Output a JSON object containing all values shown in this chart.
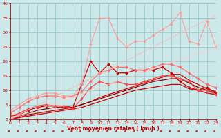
{
  "xlabel": "Vent moyen/en rafales ( km/h )",
  "xlim": [
    0,
    23
  ],
  "ylim": [
    0,
    40
  ],
  "yticks": [
    0,
    5,
    10,
    15,
    20,
    25,
    30,
    35,
    40
  ],
  "xticks": [
    0,
    1,
    2,
    3,
    4,
    5,
    6,
    7,
    8,
    9,
    10,
    11,
    12,
    13,
    14,
    15,
    16,
    17,
    18,
    19,
    20,
    21,
    22,
    23
  ],
  "bg_color": "#cce8e8",
  "grid_color": "#99cccc",
  "lines": [
    {
      "x": [
        0,
        1,
        2,
        3,
        4,
        5,
        6,
        7,
        8,
        9,
        10,
        11,
        12,
        13,
        14,
        15,
        16,
        17,
        18,
        19,
        20,
        21,
        22,
        23
      ],
      "y": [
        0,
        0.5,
        1,
        1.5,
        2,
        2.5,
        3,
        3.5,
        4,
        5,
        6,
        7,
        8,
        9,
        10,
        10.5,
        11,
        11.5,
        12,
        12,
        10.5,
        10,
        9,
        8.5
      ],
      "color": "#cc0000",
      "lw": 0.9,
      "marker": null,
      "ms": 0,
      "alpha": 1.0
    },
    {
      "x": [
        0,
        1,
        2,
        3,
        4,
        5,
        6,
        7,
        8,
        9,
        10,
        11,
        12,
        13,
        14,
        15,
        16,
        17,
        18,
        19,
        20,
        21,
        22,
        23
      ],
      "y": [
        0,
        0.5,
        1.5,
        2,
        2.5,
        3,
        3.5,
        4,
        5,
        6,
        7.5,
        8.5,
        9.5,
        10.5,
        11.5,
        12.5,
        13.5,
        14.5,
        15.5,
        15.5,
        13.5,
        12,
        10.5,
        9.5
      ],
      "color": "#cc0000",
      "lw": 0.9,
      "marker": null,
      "ms": 0,
      "alpha": 1.0
    },
    {
      "x": [
        0,
        1,
        2,
        3,
        4,
        5,
        6,
        7,
        8,
        9,
        10,
        11,
        12,
        13,
        14,
        15,
        16,
        17,
        18,
        19,
        20,
        21,
        22,
        23
      ],
      "y": [
        0,
        1,
        2,
        3,
        3.5,
        4,
        4,
        4,
        5,
        6,
        7,
        8,
        9,
        10,
        11,
        12,
        13,
        13.5,
        14,
        14,
        12.5,
        11,
        10,
        9
      ],
      "color": "#880000",
      "lw": 0.9,
      "marker": null,
      "ms": 0,
      "alpha": 1.0
    },
    {
      "x": [
        0,
        1,
        2,
        3,
        4,
        5,
        6,
        7,
        8,
        9,
        10,
        11,
        12,
        13,
        14,
        15,
        16,
        17,
        18,
        19,
        20,
        21,
        22,
        23
      ],
      "y": [
        1,
        1.5,
        3,
        4,
        4.5,
        4.5,
        4.5,
        4,
        12,
        20,
        16,
        19,
        16,
        16,
        17,
        17,
        17,
        18,
        16,
        13,
        11,
        10,
        11,
        9
      ],
      "color": "#cc0000",
      "lw": 0.9,
      "marker": "D",
      "ms": 2.0,
      "alpha": 1.0
    },
    {
      "x": [
        0,
        1,
        2,
        3,
        4,
        5,
        6,
        7,
        8,
        9,
        10,
        11,
        12,
        13,
        14,
        15,
        16,
        17,
        18,
        19,
        20,
        21,
        22,
        23
      ],
      "y": [
        1,
        2,
        3.5,
        4.5,
        5,
        4.5,
        4.5,
        3.5,
        7,
        11,
        13,
        12,
        13,
        12,
        12,
        13,
        14,
        15,
        15,
        14,
        13,
        10,
        10,
        8.5
      ],
      "color": "#ff4444",
      "lw": 0.9,
      "marker": "D",
      "ms": 2.0,
      "alpha": 1.0
    },
    {
      "x": [
        0,
        1,
        2,
        3,
        4,
        5,
        6,
        7,
        8,
        9,
        10,
        11,
        12,
        13,
        14,
        15,
        16,
        17,
        18,
        19,
        20,
        21,
        22,
        23
      ],
      "y": [
        2,
        4,
        6,
        7.5,
        8,
        8,
        7.5,
        8,
        9.5,
        13,
        16,
        17,
        18,
        18,
        17,
        17,
        18,
        19,
        19,
        18,
        16,
        14,
        12,
        11
      ],
      "color": "#ff6666",
      "lw": 0.9,
      "marker": "D",
      "ms": 2.0,
      "alpha": 0.9
    },
    {
      "x": [
        0,
        1,
        2,
        3,
        4,
        5,
        6,
        7,
        8,
        9,
        10,
        11,
        12,
        13,
        14,
        15,
        16,
        17,
        18,
        19,
        20,
        21,
        22,
        23
      ],
      "y": [
        3,
        5,
        7,
        8,
        9,
        9,
        8,
        8,
        12,
        26,
        35,
        35,
        28,
        25,
        27,
        27,
        29,
        31,
        33,
        37,
        27,
        26,
        34,
        25
      ],
      "color": "#ff9999",
      "lw": 0.9,
      "marker": "D",
      "ms": 2.0,
      "alpha": 0.85
    },
    {
      "x": [
        0,
        23
      ],
      "y": [
        0,
        36
      ],
      "color": "#ffbbbb",
      "lw": 0.9,
      "marker": null,
      "ms": 0,
      "alpha": 0.7
    },
    {
      "x": [
        0,
        23
      ],
      "y": [
        0,
        25
      ],
      "color": "#ffcccc",
      "lw": 0.9,
      "marker": null,
      "ms": 0,
      "alpha": 0.7
    }
  ],
  "arrow_color": "#cc0000",
  "tick_color": "#cc0000",
  "label_color": "#cc0000"
}
